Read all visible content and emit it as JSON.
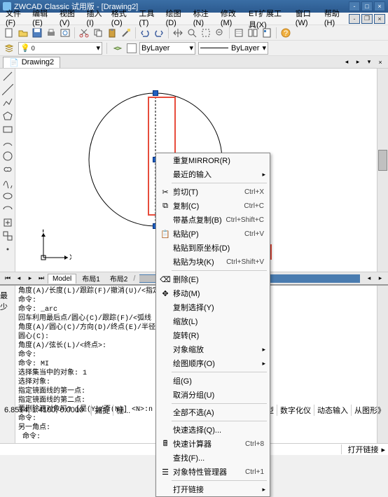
{
  "title": "ZWCAD Classic 试用版 - [Drawing2]",
  "menus": [
    "文件(F)",
    "编辑(E)",
    "视图(V)",
    "插入(I)",
    "格式(O)",
    "工具(T)",
    "绘图(D)",
    "标注(N)",
    "修改(M)",
    "ET扩展工具(X)",
    "窗口(W)",
    "帮助(H)"
  ],
  "layer_props": {
    "bylayer1": "ByLayer",
    "bylayer2": "ByLayer"
  },
  "doc_tab": "Drawing2",
  "bottom_tabs": {
    "model": "Model",
    "layout1": "布局1",
    "layout2": "布局2"
  },
  "context": [
    {
      "t": "item",
      "icon": "",
      "label": "重复MIRROR(R)",
      "sc": "",
      "arr": false
    },
    {
      "t": "item",
      "icon": "",
      "label": "最近的输入",
      "sc": "",
      "arr": true
    },
    {
      "t": "sep"
    },
    {
      "t": "item",
      "icon": "✂",
      "label": "剪切(T)",
      "sc": "Ctrl+X",
      "arr": false
    },
    {
      "t": "item",
      "icon": "⧉",
      "label": "复制(C)",
      "sc": "Ctrl+C",
      "arr": false
    },
    {
      "t": "item",
      "icon": "",
      "label": "带基点复制(B)",
      "sc": "Ctrl+Shift+C",
      "arr": false
    },
    {
      "t": "item",
      "icon": "📋",
      "label": "粘贴(P)",
      "sc": "Ctrl+V",
      "arr": false
    },
    {
      "t": "item",
      "icon": "",
      "label": "粘贴到原坐标(D)",
      "sc": "",
      "arr": false
    },
    {
      "t": "item",
      "icon": "",
      "label": "粘贴为块(K)",
      "sc": "Ctrl+Shift+V",
      "arr": false
    },
    {
      "t": "sep"
    },
    {
      "t": "item",
      "icon": "⌫",
      "label": "删除(E)",
      "sc": "",
      "arr": false
    },
    {
      "t": "item",
      "icon": "✥",
      "label": "移动(M)",
      "sc": "",
      "arr": false
    },
    {
      "t": "item",
      "icon": "",
      "label": "复制选择(Y)",
      "sc": "",
      "arr": false
    },
    {
      "t": "item",
      "icon": "",
      "label": "缩放(L)",
      "sc": "",
      "arr": false
    },
    {
      "t": "item",
      "icon": "",
      "label": "旋转(R)",
      "sc": "",
      "arr": false
    },
    {
      "t": "item",
      "icon": "",
      "label": "对象缩放",
      "sc": "",
      "arr": true
    },
    {
      "t": "item",
      "icon": "",
      "label": "绘图顺序(O)",
      "sc": "",
      "arr": true
    },
    {
      "t": "sep"
    },
    {
      "t": "item",
      "icon": "",
      "label": "组(G)",
      "sc": "",
      "arr": false
    },
    {
      "t": "item",
      "icon": "",
      "label": "取消分组(U)",
      "sc": "",
      "arr": false
    },
    {
      "t": "sep"
    },
    {
      "t": "item",
      "icon": "",
      "label": "全部不选(A)",
      "sc": "",
      "arr": false
    },
    {
      "t": "sep"
    },
    {
      "t": "item",
      "icon": "",
      "label": "快速选择(Q)...",
      "sc": "",
      "arr": false
    },
    {
      "t": "item",
      "icon": "🖩",
      "label": "快速计算器",
      "sc": "Ctrl+8",
      "arr": false
    },
    {
      "t": "item",
      "icon": "",
      "label": "查找(F)...",
      "sc": "",
      "arr": false
    },
    {
      "t": "item",
      "icon": "☰",
      "label": "对象特性管理器",
      "sc": "Ctrl+1",
      "arr": false
    },
    {
      "t": "sep"
    },
    {
      "t": "item",
      "icon": "",
      "label": "打开链接",
      "sc": "",
      "arr": true
    }
  ],
  "cmd_hint": "最少",
  "cmd_text": "角度(A)/长度(L)/跟踪(F)/撤消(U)/<指定\n命令:\n命令: _arc\n回车利用最后点/圆心(C)/跟踪(F)/<弧线\n角度(A)/圆心(C)/方向(D)/终点(E)/半径\n圆心(C):\n角度(A)/弦长(L)/<终点>:\n命令:\n命令: MI\n选择集当中的对象: 1\n选择对象:\n指定镜面线的第一点:\n指定镜面线的第二点:\n要删除源对象吗? [是(Y)/否(N)] <N>:n\n命令:\n另一角点:\n 命令:",
  "cmd_input_label": "打开链接",
  "cmd_input_arrow": "▸",
  "coords": "6.8514, 1.4100, 0.0000",
  "status_mid": [
    "捕捉",
    "栅..."
  ],
  "status_toggles": [
    "线宽",
    "模型",
    "数字化仪",
    "动态输入",
    "从图形》"
  ],
  "ucs": {
    "x": "X",
    "y": "Y"
  },
  "colors": {
    "titlebar": "#3a6ea5",
    "highlight": "#e74c3c",
    "grip": "#2060c0"
  }
}
